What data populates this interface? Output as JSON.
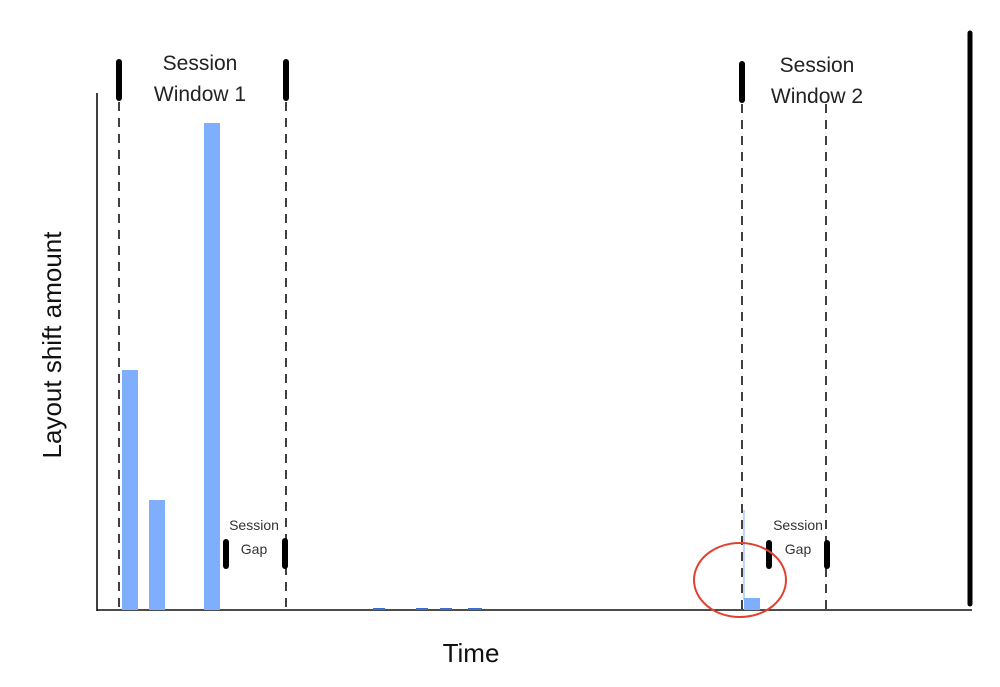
{
  "axes": {
    "x_label": "Time",
    "y_label": "Layout shift amount"
  },
  "windows": [
    {
      "line1": "Session",
      "line2": "Window 1"
    },
    {
      "line1": "Session",
      "line2": "Window 2"
    }
  ],
  "gaps": [
    {
      "line1": "Session",
      "line2": "Gap"
    },
    {
      "line1": "Session",
      "line2": "Gap"
    }
  ],
  "colors": {
    "bar": "#7eaefc",
    "highlight_circle": "#e0412f",
    "lines": "#000000"
  }
}
